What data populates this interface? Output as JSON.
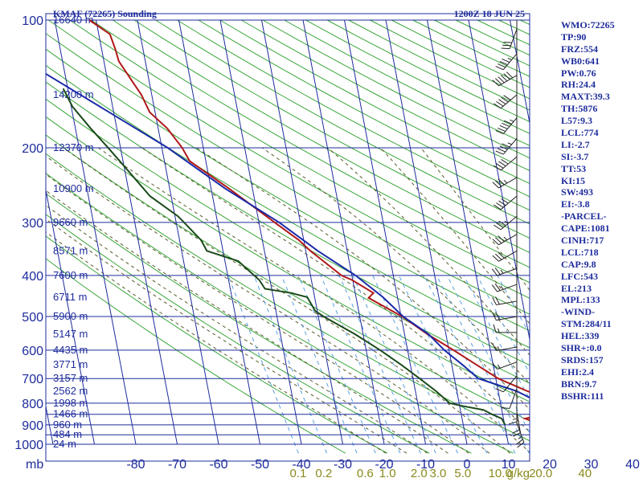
{
  "header": {
    "station": "KMAF (72265) Sounding",
    "time": "1200Z 18 JUN 25"
  },
  "colors": {
    "frame": "#1e2c9c",
    "isobar": "#1e2c9c",
    "isotherm": "#1e2c9c",
    "dry_adiabat": "#3aa63a",
    "moist_adiabat": "#5a5a2a",
    "mixing_ratio": "#5aa0e0",
    "temperature": "#b01818",
    "dewpoint": "#1a4a1a",
    "parcel": "#1a2aa8",
    "wind_barb": "#222222",
    "stats_text": "#1e2c9c",
    "mixing_label": "#8a8a1e"
  },
  "stats": [
    "WMO:72265",
    "TP:90",
    "FRZ:554",
    "WB0:641",
    "PW:0.76",
    "RH:24.4",
    "MAXT:39.3",
    "TH:5876",
    "L57:9.3",
    "LCL:774",
    "LI:-2.7",
    "SI:-3.7",
    "TT:53",
    "KI:15",
    "SW:493",
    "EI:-3.8",
    "-PARCEL-",
    "CAPE:1081",
    "CINH:717",
    "LCL:718",
    "CAP:9.8",
    "LFC:543",
    "EL:213",
    "MPL:133",
    "-WIND-",
    "STM:284/11",
    "HEL:339",
    "SHR+:0.0",
    "SRDS:157",
    "EHI:2.4",
    "BRN:9.7",
    "BSHR:111"
  ],
  "chart_data": {
    "type": "line",
    "title": "KMAF (72265) Sounding",
    "subtitle": "1200Z 18 JUN 25",
    "xlabel": "",
    "ylabel": "mb",
    "y_unit_label": "mb",
    "y_scale": "log",
    "ylim": [
      1000,
      100
    ],
    "xlim": [
      -80,
      40
    ],
    "skew": true,
    "grid": true,
    "pressure_ticks": [
      100,
      200,
      300,
      400,
      500,
      600,
      700,
      800,
      900,
      1000
    ],
    "temperature_ticks": [
      -80,
      -70,
      -60,
      -50,
      -40,
      -30,
      -20,
      -10,
      0,
      10,
      20,
      30,
      40
    ],
    "temperature_tick_labels": [
      "-80",
      "-70",
      "-60",
      "-50",
      "-40",
      "-30",
      "-20",
      "-10",
      "0",
      "10",
      "20",
      "30",
      "40"
    ],
    "mixing_ratio_unit": "g/kg",
    "mixing_ratio_labels": [
      {
        "text": "0.1",
        "t": -40.8
      },
      {
        "text": "0.2",
        "t": -34.6
      },
      {
        "text": "0.6",
        "t": -24.6
      },
      {
        "text": "1.0",
        "t": -19.2
      },
      {
        "text": "2.0",
        "t": -11.6
      },
      {
        "text": "3.0",
        "t": -7.0
      },
      {
        "text": "5.0",
        "t": -1.0
      },
      {
        "text": "10.0",
        "t": 8.0
      },
      {
        "text": "20.0",
        "t": 17.8
      },
      {
        "text": "40",
        "t": 28.5
      }
    ],
    "height_labels": [
      {
        "p": 100,
        "text": "16640 m"
      },
      {
        "p": 150,
        "text": "14200 m"
      },
      {
        "p": 200,
        "text": "12370 m"
      },
      {
        "p": 250,
        "text": "10900 m"
      },
      {
        "p": 300,
        "text": "9660 m"
      },
      {
        "p": 350,
        "text": "8571 m"
      },
      {
        "p": 400,
        "text": "7600 m"
      },
      {
        "p": 450,
        "text": "6711 m"
      },
      {
        "p": 500,
        "text": "5900 m"
      },
      {
        "p": 550,
        "text": "5147 m"
      },
      {
        "p": 600,
        "text": "4435 m"
      },
      {
        "p": 650,
        "text": "3771 m"
      },
      {
        "p": 700,
        "text": "3157 m"
      },
      {
        "p": 750,
        "text": "2562 m"
      },
      {
        "p": 800,
        "text": "1998 m"
      },
      {
        "p": 850,
        "text": "1466 m"
      },
      {
        "p": 900,
        "text": "960 m"
      },
      {
        "p": 950,
        "text": "484 m"
      },
      {
        "p": 1000,
        "text": "24 m"
      }
    ],
    "series": [
      {
        "key": "temperature",
        "points": [
          {
            "p": 100,
            "t": -71.6
          },
          {
            "p": 108,
            "t": -67.3
          },
          {
            "p": 117,
            "t": -66.7
          },
          {
            "p": 125,
            "t": -66.4
          },
          {
            "p": 140,
            "t": -64.0
          },
          {
            "p": 150,
            "t": -62.5
          },
          {
            "p": 165,
            "t": -61.3
          },
          {
            "p": 180,
            "t": -57.8
          },
          {
            "p": 200,
            "t": -55.1
          },
          {
            "p": 215,
            "t": -53.9
          },
          {
            "p": 250,
            "t": -45.6
          },
          {
            "p": 300,
            "t": -36.2
          },
          {
            "p": 330,
            "t": -31.2
          },
          {
            "p": 350,
            "t": -28.9
          },
          {
            "p": 400,
            "t": -22.5
          },
          {
            "p": 410,
            "t": -20.2
          },
          {
            "p": 440,
            "t": -15.6
          },
          {
            "p": 452,
            "t": -17.0
          },
          {
            "p": 500,
            "t": -9.7
          },
          {
            "p": 550,
            "t": -4.5
          },
          {
            "p": 600,
            "t": 1.1
          },
          {
            "p": 650,
            "t": 6.0
          },
          {
            "p": 700,
            "t": 10.6
          },
          {
            "p": 750,
            "t": 17.1
          },
          {
            "p": 800,
            "t": 24.3
          },
          {
            "p": 840,
            "t": 17.7
          },
          {
            "p": 860,
            "t": 17.6
          },
          {
            "p": 870,
            "t": 15.2
          },
          {
            "p": 880,
            "t": 16.6
          },
          {
            "p": 895,
            "t": 18.6
          }
        ]
      },
      {
        "key": "dewpoint",
        "points": [
          {
            "p": 145,
            "t": -81.1
          },
          {
            "p": 160,
            "t": -79.7
          },
          {
            "p": 180,
            "t": -76.3
          },
          {
            "p": 200,
            "t": -73.0
          },
          {
            "p": 220,
            "t": -70.1
          },
          {
            "p": 260,
            "t": -65.1
          },
          {
            "p": 290,
            "t": -59.3
          },
          {
            "p": 300,
            "t": -58.1
          },
          {
            "p": 330,
            "t": -54.8
          },
          {
            "p": 350,
            "t": -53.9
          },
          {
            "p": 370,
            "t": -46.8
          },
          {
            "p": 380,
            "t": -45.7
          },
          {
            "p": 410,
            "t": -42.6
          },
          {
            "p": 430,
            "t": -41.6
          },
          {
            "p": 440,
            "t": -35.5
          },
          {
            "p": 450,
            "t": -31.8
          },
          {
            "p": 485,
            "t": -30.5
          },
          {
            "p": 500,
            "t": -28.7
          },
          {
            "p": 550,
            "t": -22.0
          },
          {
            "p": 600,
            "t": -16.6
          },
          {
            "p": 650,
            "t": -12.2
          },
          {
            "p": 700,
            "t": -8.4
          },
          {
            "p": 750,
            "t": -5.0
          },
          {
            "p": 800,
            "t": -2.3
          },
          {
            "p": 812,
            "t": 0.5
          },
          {
            "p": 830,
            "t": 5.6
          },
          {
            "p": 850,
            "t": 7.4
          },
          {
            "p": 870,
            "t": 9.6
          },
          {
            "p": 900,
            "t": 10.1
          }
        ]
      },
      {
        "key": "parcel",
        "points": [
          {
            "p": 130,
            "t": -86.5
          },
          {
            "p": 200,
            "t": -58.6
          },
          {
            "p": 250,
            "t": -46.5
          },
          {
            "p": 300,
            "t": -35.1
          },
          {
            "p": 350,
            "t": -27.1
          },
          {
            "p": 400,
            "t": -19.1
          },
          {
            "p": 450,
            "t": -13.5
          },
          {
            "p": 500,
            "t": -9.5
          },
          {
            "p": 550,
            "t": -4.2
          },
          {
            "p": 600,
            "t": -1.1
          },
          {
            "p": 650,
            "t": 2.6
          },
          {
            "p": 700,
            "t": 5.8
          },
          {
            "p": 750,
            "t": 14.5
          },
          {
            "p": 800,
            "t": 19.7
          },
          {
            "p": 850,
            "t": 24.2
          },
          {
            "p": 900,
            "t": 29.2
          }
        ]
      }
    ],
    "wind_barbs": [
      {
        "p": 105,
        "dir": 200,
        "kt": 30
      },
      {
        "p": 120,
        "dir": 220,
        "kt": 45
      },
      {
        "p": 135,
        "dir": 240,
        "kt": 60
      },
      {
        "p": 150,
        "dir": 230,
        "kt": 50
      },
      {
        "p": 170,
        "dir": 220,
        "kt": 55
      },
      {
        "p": 190,
        "dir": 220,
        "kt": 45
      },
      {
        "p": 210,
        "dir": 230,
        "kt": 40
      },
      {
        "p": 235,
        "dir": 240,
        "kt": 35
      },
      {
        "p": 260,
        "dir": 230,
        "kt": 40
      },
      {
        "p": 290,
        "dir": 230,
        "kt": 35
      },
      {
        "p": 320,
        "dir": 240,
        "kt": 35
      },
      {
        "p": 350,
        "dir": 240,
        "kt": 30
      },
      {
        "p": 385,
        "dir": 250,
        "kt": 25
      },
      {
        "p": 420,
        "dir": 250,
        "kt": 25
      },
      {
        "p": 460,
        "dir": 260,
        "kt": 20
      },
      {
        "p": 500,
        "dir": 260,
        "kt": 20
      },
      {
        "p": 545,
        "dir": 270,
        "kt": 15
      },
      {
        "p": 590,
        "dir": 260,
        "kt": 15
      },
      {
        "p": 640,
        "dir": 250,
        "kt": 15
      },
      {
        "p": 690,
        "dir": 220,
        "kt": 10
      },
      {
        "p": 740,
        "dir": 200,
        "kt": 10
      },
      {
        "p": 790,
        "dir": 180,
        "kt": 15
      },
      {
        "p": 840,
        "dir": 170,
        "kt": 20
      },
      {
        "p": 890,
        "dir": 160,
        "kt": 25
      }
    ]
  }
}
